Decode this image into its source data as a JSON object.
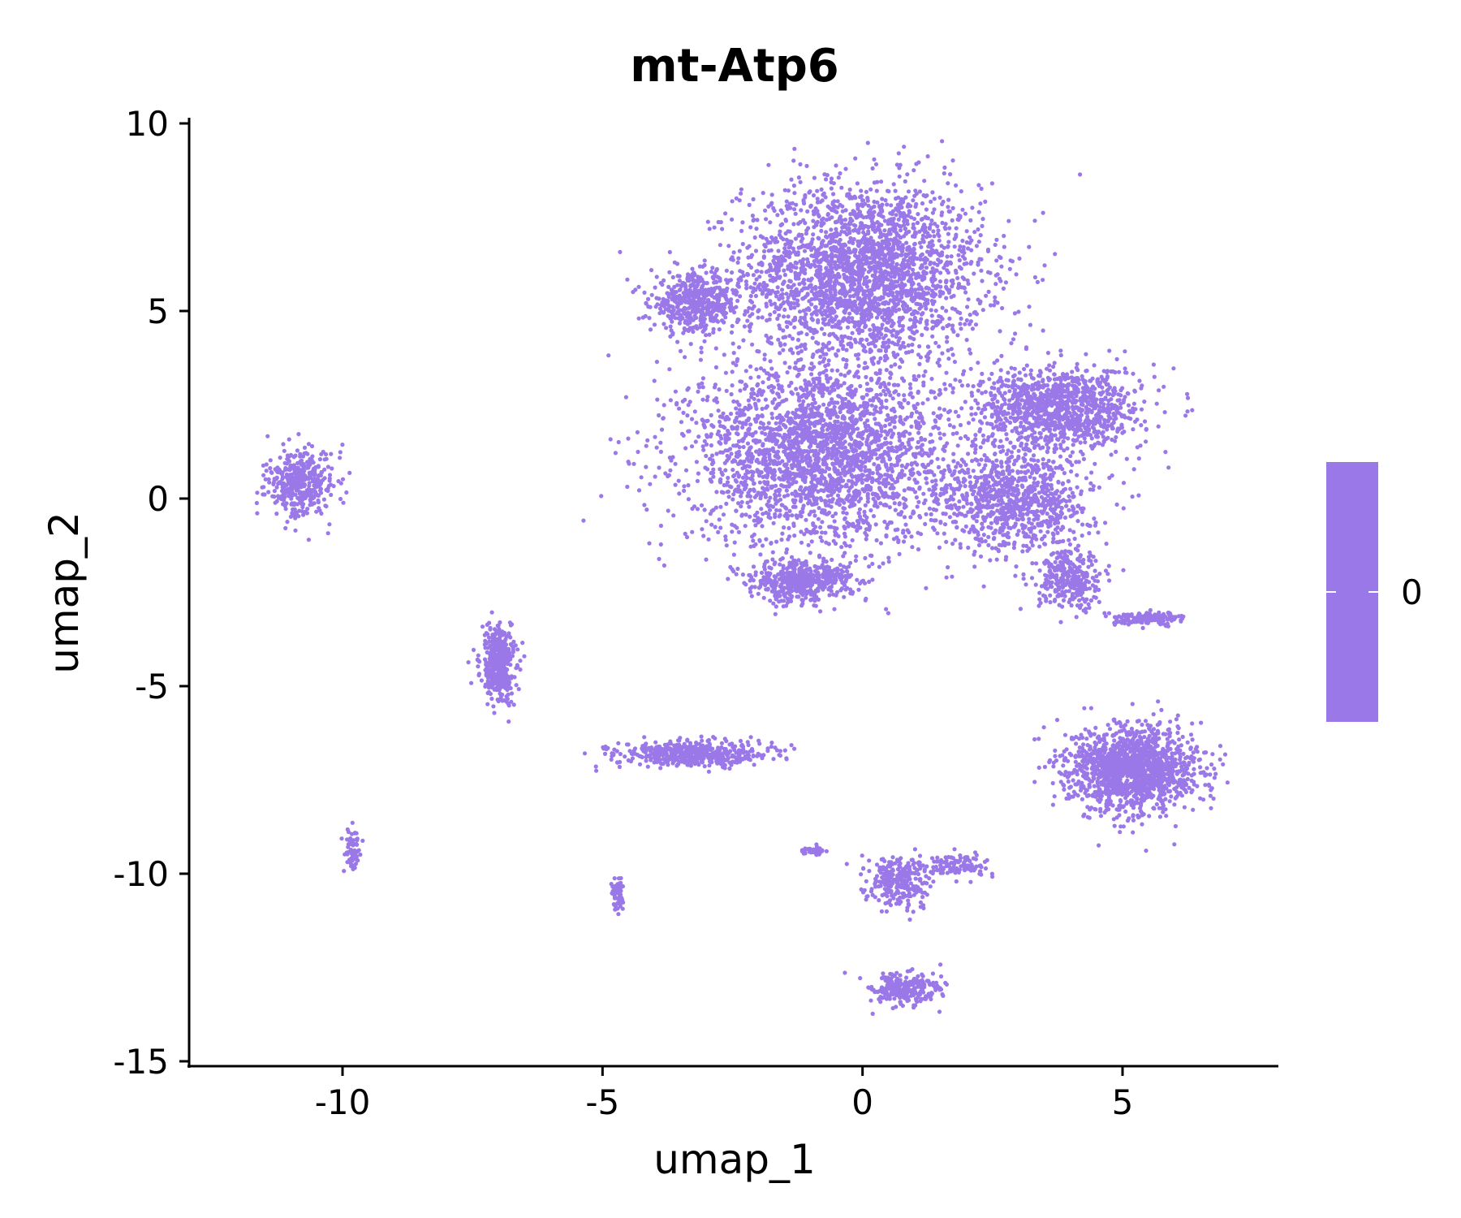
{
  "chart_data": {
    "type": "scatter",
    "title": "mt-Atp6",
    "xlabel": "umap_1",
    "ylabel": "umap_2",
    "xlim": [
      -13,
      8
    ],
    "ylim": [
      -15.2,
      10.2
    ],
    "xticks": [
      -10,
      -5,
      0,
      5
    ],
    "yticks": [
      10,
      5,
      0,
      -5,
      -10,
      -15
    ],
    "xtick_labels": [
      "-10",
      "-5",
      "0",
      "5"
    ],
    "ytick_labels": [
      "10",
      "5",
      "0",
      "-5",
      "-10",
      "-15"
    ],
    "grid": false,
    "point_color": "#9b78e8",
    "colorbar": {
      "color": "#9b78e8",
      "tick_labels": [
        "0"
      ],
      "placement": "right"
    },
    "clusters": [
      {
        "name": "top-main",
        "center": [
          0.0,
          6.0
        ],
        "spread": [
          2.1,
          2.2
        ],
        "n": 2600
      },
      {
        "name": "top-left-lobe",
        "center": [
          -3.2,
          5.2
        ],
        "spread": [
          0.8,
          0.7
        ],
        "n": 500
      },
      {
        "name": "center",
        "center": [
          -0.8,
          1.2
        ],
        "spread": [
          2.3,
          2.2
        ],
        "n": 2600
      },
      {
        "name": "right-upper",
        "center": [
          3.8,
          2.4
        ],
        "spread": [
          1.4,
          1.0
        ],
        "n": 1100
      },
      {
        "name": "right-mid",
        "center": [
          3.0,
          0.0
        ],
        "spread": [
          1.3,
          1.3
        ],
        "n": 900
      },
      {
        "name": "bottom-left-blob",
        "center": [
          -1.2,
          -2.2
        ],
        "spread": [
          0.9,
          0.5
        ],
        "n": 500
      },
      {
        "name": "right-arm",
        "center": [
          4.0,
          -2.2
        ],
        "spread": [
          0.6,
          0.7
        ],
        "n": 300
      },
      {
        "name": "horizontal-tail",
        "center": [
          5.5,
          -3.2
        ],
        "spread": [
          0.6,
          0.15
        ],
        "n": 150
      },
      {
        "name": "lower-right-cluster",
        "center": [
          5.2,
          -7.2
        ],
        "spread": [
          1.1,
          1.0
        ],
        "n": 1500
      },
      {
        "name": "left-triangle",
        "center": [
          -10.8,
          0.4
        ],
        "spread": [
          0.6,
          0.8
        ],
        "n": 400
      },
      {
        "name": "left-arc",
        "center": [
          -7.0,
          -4.4
        ],
        "spread": [
          0.3,
          0.9
        ],
        "n": 400
      },
      {
        "name": "bottom-streak",
        "center": [
          -3.3,
          -6.8
        ],
        "spread": [
          1.3,
          0.3
        ],
        "n": 500
      },
      {
        "name": "small-left-bits",
        "center": [
          -9.8,
          -9.4
        ],
        "spread": [
          0.15,
          0.5
        ],
        "n": 70
      },
      {
        "name": "small-bottom-bits",
        "center": [
          -4.7,
          -10.5
        ],
        "spread": [
          0.1,
          0.4
        ],
        "n": 60
      },
      {
        "name": "lower-middle",
        "center": [
          0.7,
          -10.2
        ],
        "spread": [
          0.5,
          0.6
        ],
        "n": 280
      },
      {
        "name": "lower-middle-right",
        "center": [
          1.8,
          -9.8
        ],
        "spread": [
          0.6,
          0.3
        ],
        "n": 120
      },
      {
        "name": "lower-middle-left",
        "center": [
          -1.0,
          -9.4
        ],
        "spread": [
          0.3,
          0.1
        ],
        "n": 40
      },
      {
        "name": "bottom-triangle",
        "center": [
          0.8,
          -13.1
        ],
        "spread": [
          0.6,
          0.4
        ],
        "n": 260
      }
    ]
  }
}
